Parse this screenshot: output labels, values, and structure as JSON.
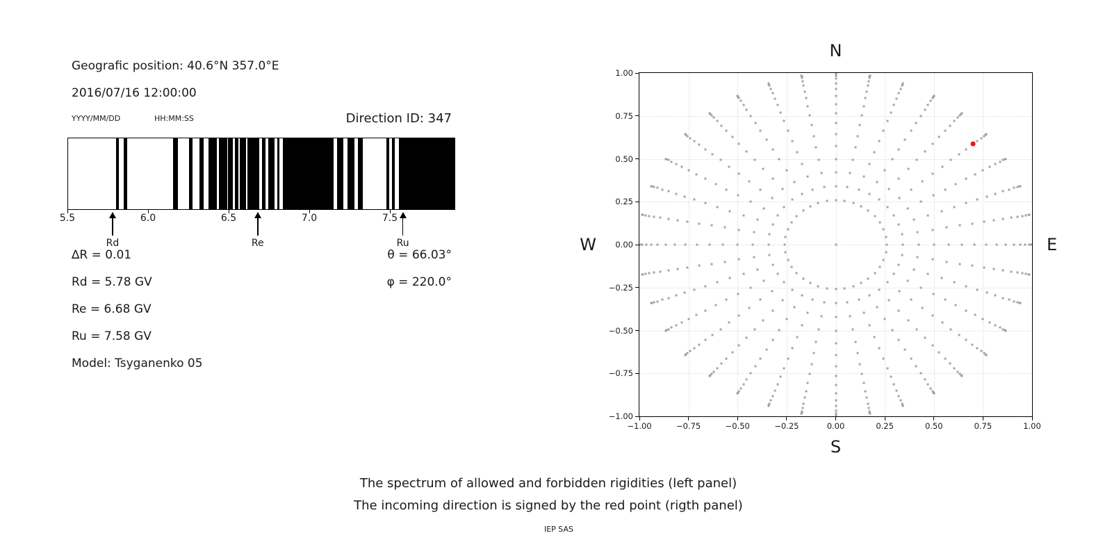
{
  "info": {
    "geo_position": "Geografic position: 40.6°N 357.0°E",
    "datetime": "2016/07/16 12:00:00",
    "date_format": "YYYY/MM/DD",
    "time_format": "HH:MM:SS",
    "direction_id": "Direction ID: 347",
    "delta_r": "∆R = 0.01",
    "rd": "Rd = 5.78 GV",
    "re": "Re = 6.68 GV",
    "ru": "Ru = 7.58 GV",
    "model": "Model: Tsyganenko 05",
    "theta": "θ = 66.03°",
    "phi": "φ = 220.0°"
  },
  "caption": {
    "line1": "The spectrum of allowed and forbidden rigidities (left panel)",
    "line2": "The incoming direction is signed by the red point (rigth panel)",
    "credit": "IEP SAS"
  },
  "colors": {
    "allowed_band": "#000000",
    "grid": "#dcdcdc",
    "gray_dot": "#999999",
    "red_point": "#ee1111",
    "text": "#1a1a1a"
  },
  "chart_data": [
    {
      "type": "bar",
      "name": "rigidity-spectrum-barcode",
      "description": "Allowed (black) and forbidden (white) rigidity bands in GV",
      "xlim": [
        5.5,
        7.905
      ],
      "xticks": [
        5.5,
        6.0,
        6.5,
        7.0,
        7.5
      ],
      "xtick_labels": [
        "5.5",
        "6.0",
        "6.5",
        "7.0",
        "7.5"
      ],
      "grid": false,
      "allowed_intervals_gv": [
        [
          5.797,
          5.816
        ],
        [
          5.847,
          5.869
        ],
        [
          6.155,
          6.183
        ],
        [
          6.251,
          6.276
        ],
        [
          6.318,
          6.343
        ],
        [
          6.374,
          6.426
        ],
        [
          6.44,
          6.489
        ],
        [
          6.495,
          6.525
        ],
        [
          6.537,
          6.56
        ],
        [
          6.567,
          6.608
        ],
        [
          6.618,
          6.691
        ],
        [
          6.708,
          6.727
        ],
        [
          6.744,
          6.784
        ],
        [
          6.803,
          6.817
        ],
        [
          6.838,
          7.151
        ],
        [
          7.172,
          7.215
        ],
        [
          7.237,
          7.28
        ],
        [
          7.302,
          7.335
        ],
        [
          7.481,
          7.499
        ],
        [
          7.517,
          7.535
        ],
        [
          7.557,
          7.905
        ]
      ],
      "markers": [
        {
          "label": "Rd",
          "value_gv": 5.78
        },
        {
          "label": "Re",
          "value_gv": 6.68
        },
        {
          "label": "Ru",
          "value_gv": 7.58
        }
      ]
    },
    {
      "type": "scatter",
      "name": "incoming-direction-skymap",
      "xlim": [
        -1,
        1
      ],
      "ylim": [
        -1,
        1
      ],
      "xticks": [
        -1,
        -0.75,
        -0.5,
        -0.25,
        0,
        0.25,
        0.5,
        0.75,
        1
      ],
      "xtick_labels": [
        "−1.00",
        "−0.75",
        "−0.50",
        "−0.25",
        "0.00",
        "0.25",
        "0.50",
        "0.75",
        "1.00"
      ],
      "yticks": [
        1,
        0.75,
        0.5,
        0.25,
        0,
        -0.25,
        -0.5,
        -0.75,
        -1
      ],
      "ytick_labels": [
        "1.00",
        "0.75",
        "0.50",
        "0.25",
        "0.00",
        "−0.25",
        "−0.50",
        "−0.75",
        "−1.00"
      ],
      "grid": "dotted",
      "grid_values": [
        -0.75,
        -0.5,
        -0.25,
        0,
        0.25,
        0.5,
        0.75
      ],
      "compass": {
        "n": "N",
        "s": "S",
        "w": "W",
        "e": "E"
      },
      "series": [
        {
          "name": "direction-grid-dots",
          "color": "#999999",
          "marker": "square",
          "includes_center_point": true,
          "generator": {
            "rule": "x = sin(zenith)*sin(azimuth), y = sin(zenith)*cos(azimuth)",
            "azimuth_start_deg": 0,
            "azimuth_step_deg": 10,
            "azimuth_count": 36,
            "zenith_start_deg": 15,
            "zenith_end_deg": 90,
            "zenith_step_deg": 5
          }
        },
        {
          "name": "incoming-direction-red-point",
          "color": "#ee1111",
          "marker": "circle",
          "points": [
            [
              0.7,
              0.587
            ]
          ],
          "azimuth_deg": 50,
          "zenith_deg": 66.03
        }
      ]
    }
  ]
}
